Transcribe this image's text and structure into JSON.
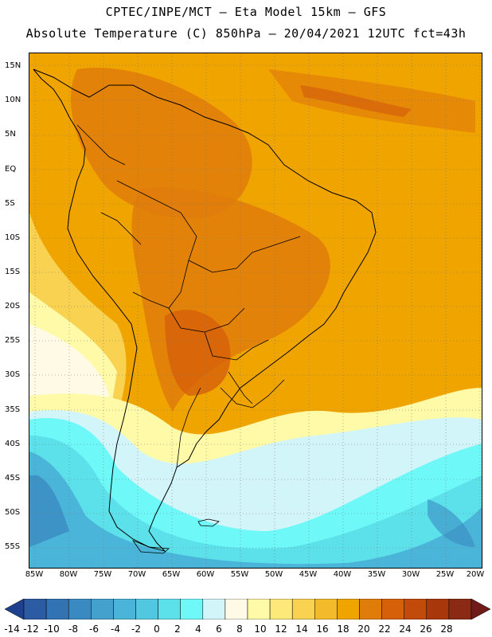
{
  "title": {
    "line1": "CPTEC/INPE/MCT –  Eta Model 15km – GFS",
    "line2": "Absolute Temperature (C) 850hPa – 20/04/2021 12UTC fct=43h"
  },
  "map": {
    "lat_labels": [
      "15N",
      "10N",
      "5N",
      "EQ",
      "5S",
      "10S",
      "15S",
      "20S",
      "25S",
      "30S",
      "35S",
      "40S",
      "45S",
      "50S",
      "55S"
    ],
    "lon_labels": [
      "85W",
      "80W",
      "75W",
      "70W",
      "65W",
      "60W",
      "55W",
      "50W",
      "45W",
      "40W",
      "35W",
      "30W",
      "25W",
      "20W"
    ],
    "lat_range": [
      -57.5,
      17.5
    ],
    "lon_range": [
      -86,
      -19
    ]
  },
  "colorbar": {
    "labels": [
      "-14",
      "-12",
      "-10",
      "-8",
      "-6",
      "-4",
      "-2",
      "0",
      "2",
      "4",
      "6",
      "8",
      "10",
      "12",
      "14",
      "16",
      "18",
      "20",
      "22",
      "24",
      "26",
      "28"
    ],
    "colors": [
      "#1f3f8f",
      "#2a5ba3",
      "#3273b3",
      "#3a8ac2",
      "#44a0cc",
      "#4ab5d8",
      "#52c8e0",
      "#5ce0ea",
      "#6ff8f8",
      "#d2f5fa",
      "#fffae6",
      "#fffaa8",
      "#fde87a",
      "#f8d250",
      "#f3bb2c",
      "#f0a400",
      "#e07d0a",
      "#d6600a",
      "#c24a0a",
      "#a8380c",
      "#8a2a14",
      "#701a1a"
    ]
  }
}
